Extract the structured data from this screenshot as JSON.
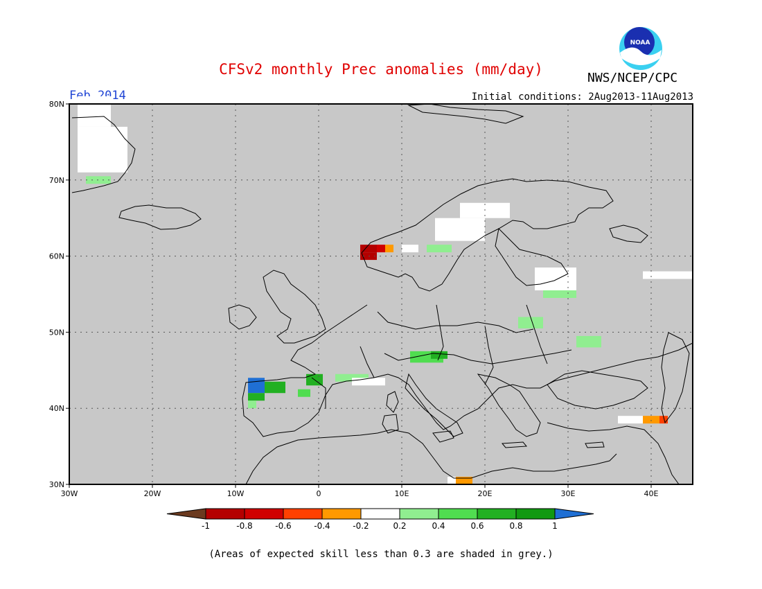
{
  "header": {
    "title": "CFSv2 monthly Prec anomalies (mm/day)",
    "org": "NWS/NCEP/CPC",
    "logo_text": "NOAA",
    "valid_month": "Feb 2014",
    "initial_conditions": "Initial conditions: 2Aug2013-11Aug2013"
  },
  "map": {
    "extent": {
      "lon_min": -30,
      "lon_max": 45,
      "lat_min": 30,
      "lat_max": 80
    },
    "lat_ticks": [
      {
        "value": 30,
        "label": "30N"
      },
      {
        "value": 40,
        "label": "40N"
      },
      {
        "value": 50,
        "label": "50N"
      },
      {
        "value": 60,
        "label": "60N"
      },
      {
        "value": 70,
        "label": "70N"
      },
      {
        "value": 80,
        "label": "80N"
      }
    ],
    "lon_ticks": [
      {
        "value": -30,
        "label": "30W"
      },
      {
        "value": -20,
        "label": "20W"
      },
      {
        "value": -10,
        "label": "10W"
      },
      {
        "value": 0,
        "label": "0"
      },
      {
        "value": 10,
        "label": "10E"
      },
      {
        "value": 20,
        "label": "20E"
      },
      {
        "value": 30,
        "label": "30E"
      },
      {
        "value": 40,
        "label": "40E"
      }
    ],
    "background_color": "#c8c8c8",
    "gridlines": "dotted",
    "anomaly_cells": [
      {
        "lon": -29,
        "lat": 77,
        "w": 4,
        "h": 4,
        "value": 0.0
      },
      {
        "lon": -29,
        "lat": 71,
        "w": 6,
        "h": 6,
        "value": 0.0
      },
      {
        "lon": -28,
        "lat": 69.5,
        "w": 3,
        "h": 1,
        "value": 0.3
      },
      {
        "lon": 17,
        "lat": 65,
        "w": 6,
        "h": 2,
        "value": 0.0
      },
      {
        "lon": 14,
        "lat": 62,
        "w": 6,
        "h": 3,
        "value": 0.0
      },
      {
        "lon": 13,
        "lat": 60.5,
        "w": 3,
        "h": 1,
        "value": 0.3
      },
      {
        "lon": 5,
        "lat": 60.5,
        "w": 2,
        "h": 1,
        "value": -0.9
      },
      {
        "lon": 7,
        "lat": 60.5,
        "w": 1,
        "h": 1,
        "value": -0.7
      },
      {
        "lon": 8,
        "lat": 60.5,
        "w": 1,
        "h": 1,
        "value": -0.3
      },
      {
        "lon": 5,
        "lat": 59.5,
        "w": 2,
        "h": 1,
        "value": -0.9
      },
      {
        "lon": 10,
        "lat": 60.5,
        "w": 2,
        "h": 1,
        "value": 0.0
      },
      {
        "lon": 26,
        "lat": 55.5,
        "w": 5,
        "h": 3,
        "value": 0.0
      },
      {
        "lon": 27,
        "lat": 54.5,
        "w": 4,
        "h": 1,
        "value": 0.3
      },
      {
        "lon": 39,
        "lat": 57,
        "w": 6,
        "h": 1,
        "value": 0.0
      },
      {
        "lon": 24,
        "lat": 50.5,
        "w": 3,
        "h": 1.5,
        "value": 0.3
      },
      {
        "lon": 31,
        "lat": 48,
        "w": 3,
        "h": 1.5,
        "value": 0.3
      },
      {
        "lon": 11,
        "lat": 46,
        "w": 4,
        "h": 1.5,
        "value": 0.5
      },
      {
        "lon": 13.5,
        "lat": 46.5,
        "w": 2,
        "h": 1,
        "value": 0.7
      },
      {
        "lon": 2,
        "lat": 43.5,
        "w": 4,
        "h": 1,
        "value": 0.3
      },
      {
        "lon": 4,
        "lat": 43,
        "w": 4,
        "h": 1,
        "value": 0.0
      },
      {
        "lon": -1.5,
        "lat": 43,
        "w": 2,
        "h": 1.5,
        "value": 0.7
      },
      {
        "lon": -8.5,
        "lat": 42,
        "w": 2,
        "h": 2,
        "value": 1.1
      },
      {
        "lon": -6.5,
        "lat": 42,
        "w": 2.5,
        "h": 1.5,
        "value": 0.7
      },
      {
        "lon": -8.5,
        "lat": 41,
        "w": 2,
        "h": 1,
        "value": 0.7
      },
      {
        "lon": -8.5,
        "lat": 40,
        "w": 1,
        "h": 1,
        "value": 0.3
      },
      {
        "lon": -2.5,
        "lat": 41.5,
        "w": 1.5,
        "h": 1,
        "value": 0.4
      },
      {
        "lon": 36,
        "lat": 38,
        "w": 3,
        "h": 1,
        "value": 0.0
      },
      {
        "lon": 39,
        "lat": 38,
        "w": 2,
        "h": 1,
        "value": -0.3
      },
      {
        "lon": 41,
        "lat": 38,
        "w": 1,
        "h": 1,
        "value": -0.5
      },
      {
        "lon": 16.5,
        "lat": 30,
        "w": 2,
        "h": 1,
        "value": -0.3
      },
      {
        "lon": 15.5,
        "lat": 30,
        "w": 1,
        "h": 1,
        "value": 0.0
      }
    ]
  },
  "colorbar": {
    "tick_labels": [
      "-1",
      "-0.8",
      "-0.6",
      "-0.4",
      "-0.2",
      "0.2",
      "0.4",
      "0.6",
      "0.8",
      "1"
    ],
    "colors": [
      "#6b3a1f",
      "#b40000",
      "#d00000",
      "#ff4000",
      "#ff9900",
      "#ffffff",
      "#90ee90",
      "#50dd50",
      "#22b022",
      "#119911",
      "#1f6fd4"
    ]
  },
  "footnote": "(Areas of expected skill less than 0.3 are shaded in grey.)"
}
